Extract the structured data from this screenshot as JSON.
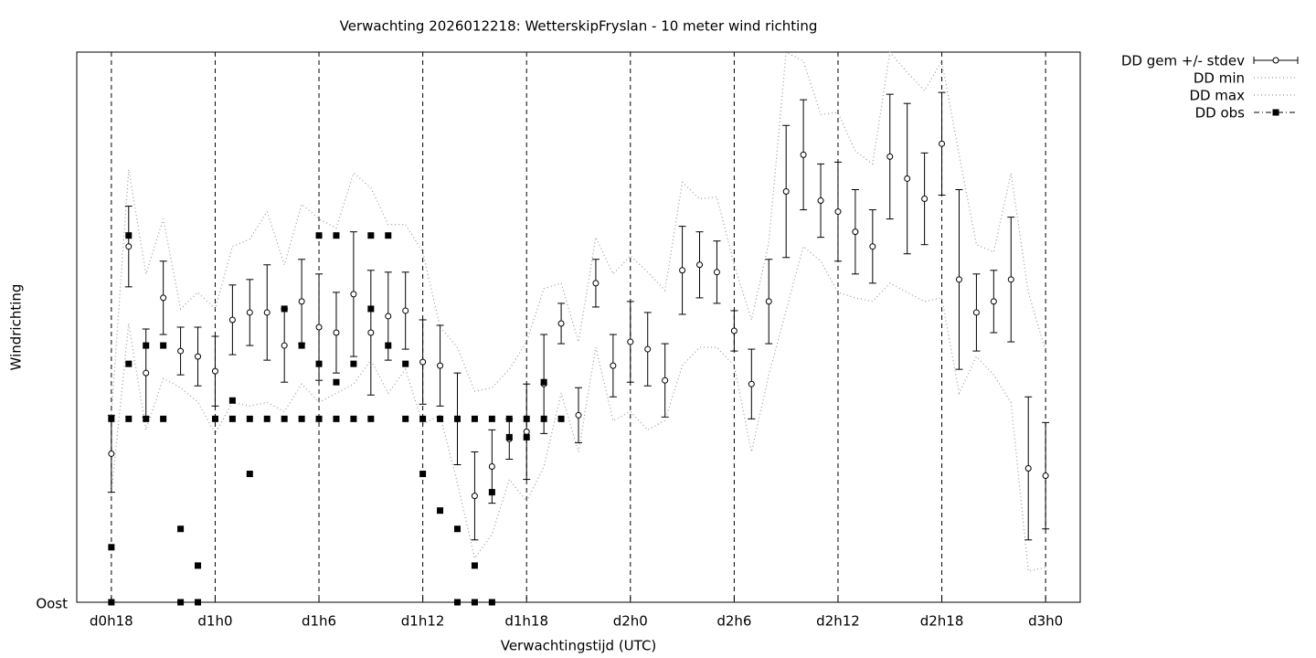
{
  "chart_data": {
    "type": "errorbar",
    "title": "Verwachting 2026012218: WetterskipFryslan - 10 meter wind richting",
    "xlabel": "Verwachtingstijd (UTC)",
    "ylabel": "Windrichting",
    "xlim": [
      16,
      74
    ],
    "ylim": [
      90,
      390
    ],
    "xticks": [
      {
        "value": 18,
        "label": "d0h18"
      },
      {
        "value": 24,
        "label": "d1h0"
      },
      {
        "value": 30,
        "label": "d1h6"
      },
      {
        "value": 36,
        "label": "d1h12"
      },
      {
        "value": 42,
        "label": "d1h18"
      },
      {
        "value": 48,
        "label": "d2h0"
      },
      {
        "value": 54,
        "label": "d2h6"
      },
      {
        "value": 60,
        "label": "d2h12"
      },
      {
        "value": 66,
        "label": "d2h18"
      },
      {
        "value": 72,
        "label": "d3h0"
      }
    ],
    "yticks": [
      {
        "value": 90,
        "label": "Oost"
      }
    ],
    "grid": "x",
    "legend": "outside-top-right",
    "x": [
      18,
      19,
      20,
      21,
      22,
      23,
      24,
      25,
      26,
      27,
      28,
      29,
      30,
      31,
      32,
      33,
      34,
      35,
      36,
      37,
      38,
      39,
      40,
      41,
      42,
      43,
      44,
      45,
      46,
      47,
      48,
      49,
      50,
      51,
      52,
      53,
      54,
      55,
      56,
      57,
      58,
      59,
      60,
      61,
      62,
      63,
      64,
      65,
      66,
      67,
      68,
      69,
      70,
      71,
      72
    ],
    "series": [
      {
        "name": "DD gem +/- stdev",
        "style": "errorbars",
        "color": "#000000",
        "values": [
          171,
          284,
          215,
          256,
          227,
          224,
          216,
          244,
          248,
          248,
          230,
          254,
          240,
          237,
          258,
          237,
          246,
          249,
          221,
          219,
          190,
          148,
          164,
          179,
          183,
          209,
          242,
          192,
          264,
          219,
          232,
          228,
          211,
          271,
          274,
          270,
          238,
          209,
          254,
          314,
          334,
          309,
          303,
          292,
          284,
          333,
          321,
          310,
          340,
          266,
          248,
          254,
          266,
          163,
          159
        ],
        "errors": [
          21,
          22,
          24,
          20,
          13,
          16,
          19,
          19,
          18,
          26,
          20,
          23,
          29,
          22,
          34,
          34,
          24,
          21,
          23,
          22,
          25,
          24,
          20,
          11,
          26,
          27,
          11,
          15,
          13,
          17,
          22,
          20,
          20,
          24,
          18,
          17,
          11,
          19,
          23,
          36,
          30,
          20,
          27,
          23,
          20,
          34,
          41,
          25,
          28,
          49,
          21,
          17,
          34,
          39,
          29
        ]
      },
      {
        "name": "DD min",
        "style": "dotted",
        "color": "#999999",
        "values": [
          149,
          242,
          184,
          212,
          207,
          199,
          182,
          199,
          197,
          199,
          194,
          209,
          199,
          204,
          209,
          222,
          204,
          217,
          187,
          192,
          155,
          114,
          127,
          157,
          145,
          164,
          204,
          172,
          229,
          189,
          194,
          184,
          189,
          219,
          229,
          229,
          219,
          172,
          214,
          249,
          284,
          276,
          259,
          256,
          254,
          264,
          259,
          254,
          256,
          204,
          224,
          214,
          199,
          107,
          109
        ]
      },
      {
        "name": "DD max",
        "style": "dotted",
        "color": "#999999",
        "values": [
          192,
          326,
          269,
          299,
          250,
          259,
          250,
          284,
          288,
          303,
          274,
          307,
          299,
          294,
          324,
          316,
          296,
          296,
          281,
          240,
          229,
          205,
          207,
          217,
          232,
          261,
          264,
          232,
          289,
          269,
          279,
          270,
          260,
          319,
          310,
          311,
          274,
          244,
          286,
          390,
          385,
          356,
          357,
          336,
          329,
          390,
          379,
          369,
          385,
          334,
          285,
          281,
          324,
          259,
          227
        ]
      },
      {
        "name": "DD obs",
        "style": "points",
        "color": "#000000",
        "x": [
          18,
          18,
          18,
          19,
          19,
          19,
          20,
          20,
          21,
          21,
          22,
          22,
          23,
          23,
          24,
          25,
          25,
          26,
          26,
          27,
          28,
          28,
          29,
          29,
          30,
          30,
          30,
          31,
          31,
          31,
          32,
          32,
          33,
          33,
          33,
          34,
          34,
          35,
          35,
          36,
          36,
          37,
          37,
          38,
          38,
          38,
          39,
          39,
          39,
          40,
          40,
          40,
          41,
          41,
          42,
          42,
          43,
          43,
          44
        ],
        "values": [
          190,
          120,
          90,
          290,
          220,
          190,
          230,
          190,
          230,
          190,
          130,
          90,
          110,
          90,
          190,
          200,
          190,
          160,
          190,
          190,
          250,
          190,
          230,
          190,
          290,
          220,
          190,
          290,
          210,
          190,
          220,
          190,
          290,
          250,
          190,
          290,
          230,
          220,
          190,
          160,
          190,
          140,
          190,
          130,
          90,
          190,
          110,
          90,
          190,
          150,
          90,
          190,
          180,
          190,
          180,
          190,
          210,
          190,
          190
        ]
      }
    ]
  }
}
